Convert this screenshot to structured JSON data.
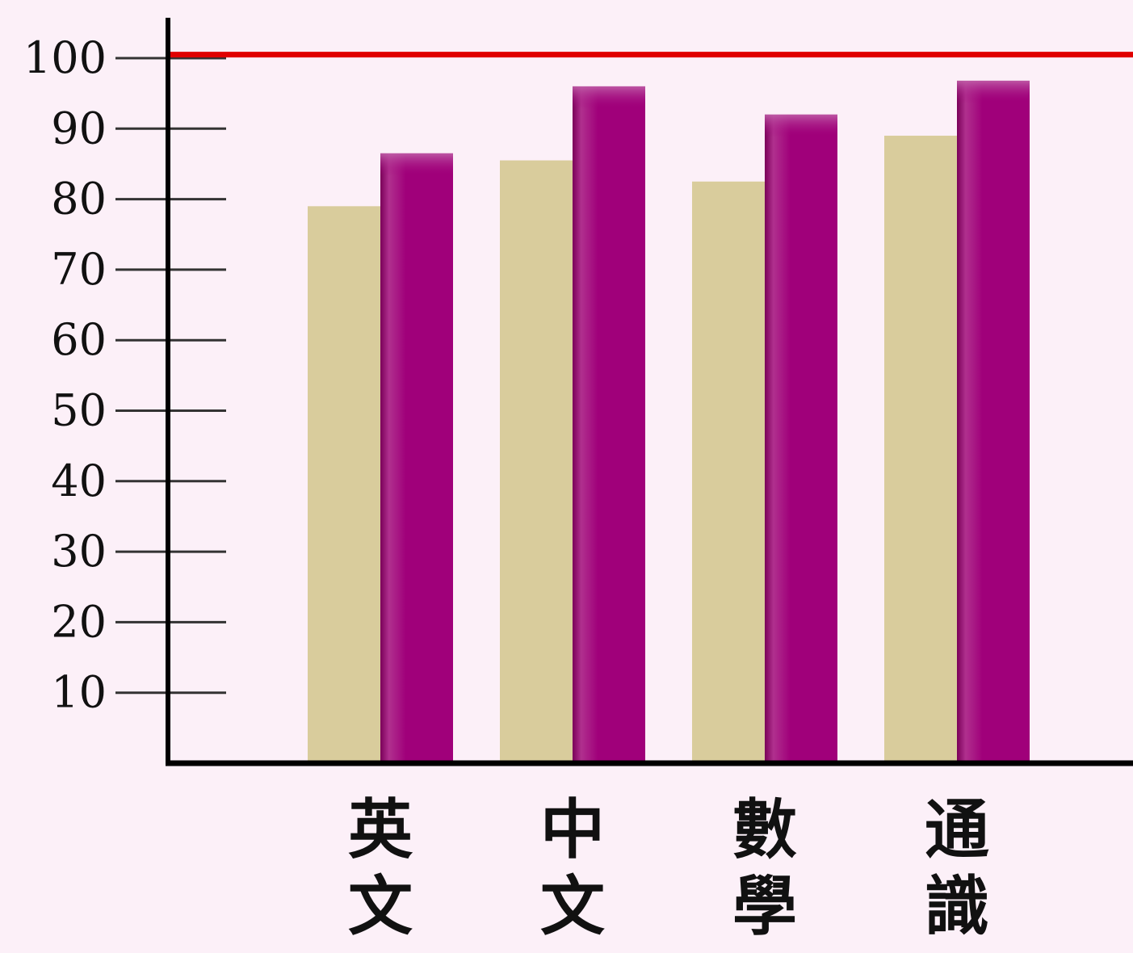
{
  "chart_data": {
    "type": "bar",
    "categories": [
      "英文",
      "中文",
      "數學",
      "通識"
    ],
    "series": [
      {
        "values": [
          79,
          85.5,
          82.5,
          89
        ],
        "color": "#d9cc9c"
      },
      {
        "values": [
          86.5,
          96,
          92,
          96.8
        ],
        "color": "#a0007a"
      }
    ],
    "ylim": [
      0,
      100
    ],
    "yticks": [
      10,
      20,
      30,
      40,
      50,
      60,
      70,
      80,
      90,
      100
    ],
    "reference_line": {
      "value": 100.5,
      "color": "#e00000"
    },
    "background": "#fcf0f8",
    "grid": false,
    "xlabel": "",
    "ylabel": "",
    "title": ""
  }
}
